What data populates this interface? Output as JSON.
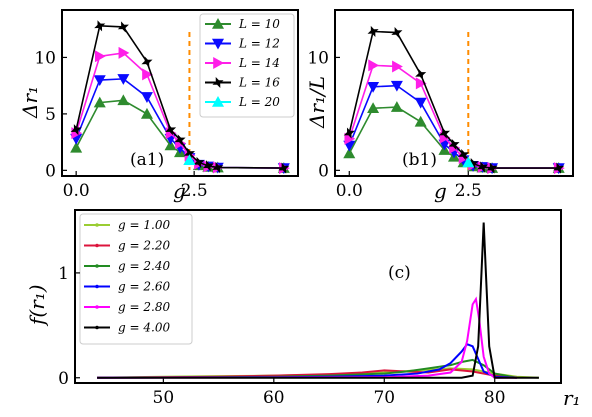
{
  "chart_data": [
    {
      "type": "line",
      "panel_label": "(a1)",
      "xlabel": "g",
      "ylabel": "Δr₁",
      "xlim": [
        -0.3,
        4.7
      ],
      "ylim": [
        -0.5,
        14.2
      ],
      "xticks": [
        {
          "v": 0.0,
          "label": "0.0"
        },
        {
          "v": 2.5,
          "label": "2.5"
        }
      ],
      "yticks": [
        {
          "v": 0,
          "label": "0"
        },
        {
          "v": 5,
          "label": "5"
        },
        {
          "v": 10,
          "label": "10"
        }
      ],
      "vline": {
        "x": 2.4,
        "color": "#ff8c00"
      },
      "legend": {
        "placement": "top-right"
      },
      "series": [
        {
          "name": "L = 10",
          "color": "#2e8b2e",
          "marker": "triangle-up",
          "x": [
            0.0,
            0.5,
            1.0,
            1.5,
            2.0,
            2.2,
            2.4,
            2.6,
            2.8,
            3.0,
            4.4
          ],
          "y": [
            2.0,
            6.0,
            6.2,
            5.0,
            2.2,
            1.6,
            0.9,
            0.45,
            0.3,
            0.25,
            0.2
          ]
        },
        {
          "name": "L = 12",
          "color": "#0a0aff",
          "marker": "triangle-down",
          "x": [
            0.0,
            0.5,
            1.0,
            1.5,
            2.0,
            2.2,
            2.4,
            2.6,
            2.8,
            3.0,
            4.4
          ],
          "y": [
            2.8,
            8.0,
            8.1,
            6.5,
            2.8,
            2.0,
            1.1,
            0.5,
            0.35,
            0.25,
            0.2
          ]
        },
        {
          "name": "L = 14",
          "color": "#ff1ee8",
          "marker": "triangle-right",
          "x": [
            0.0,
            0.5,
            1.0,
            1.5,
            2.0,
            2.2,
            2.4,
            2.6,
            2.8,
            3.0,
            4.4
          ],
          "y": [
            3.3,
            10.1,
            10.4,
            8.5,
            3.3,
            2.4,
            1.3,
            0.6,
            0.35,
            0.25,
            0.2
          ]
        },
        {
          "name": "L = 16",
          "color": "#000000",
          "marker": "star",
          "x": [
            0.0,
            0.5,
            1.0,
            1.5,
            2.0,
            2.2,
            2.4,
            2.6,
            2.8,
            3.0,
            4.4
          ],
          "y": [
            3.6,
            12.8,
            12.7,
            9.6,
            3.6,
            2.7,
            1.5,
            0.7,
            0.4,
            0.25,
            0.2
          ]
        },
        {
          "name": "L = 20",
          "color": "#00ffff",
          "marker": "triangle-up",
          "x": [
            2.4
          ],
          "y": [
            0.9
          ]
        }
      ]
    },
    {
      "type": "line",
      "panel_label": "(b1)",
      "xlabel": "g",
      "ylabel": "Δr₁/L",
      "xlim": [
        -0.3,
        4.7
      ],
      "ylim": [
        -0.5,
        14.2
      ],
      "xticks": [
        {
          "v": 0.0,
          "label": "0.0"
        },
        {
          "v": 2.5,
          "label": "2.5"
        }
      ],
      "yticks": [
        {
          "v": 0,
          "label": "0"
        },
        {
          "v": 10,
          "label": "10"
        }
      ],
      "vline": {
        "x": 2.5,
        "color": "#ff8c00"
      },
      "series": [
        {
          "name": "L = 10",
          "color": "#2e8b2e",
          "marker": "triangle-up",
          "x": [
            0.0,
            0.5,
            1.0,
            1.5,
            2.0,
            2.2,
            2.4,
            2.6,
            2.8,
            3.0,
            4.4
          ],
          "y": [
            1.5,
            5.5,
            5.6,
            4.3,
            1.8,
            1.2,
            0.7,
            0.35,
            0.25,
            0.2,
            0.2
          ]
        },
        {
          "name": "L = 12",
          "color": "#0a0aff",
          "marker": "triangle-down",
          "x": [
            0.0,
            0.5,
            1.0,
            1.5,
            2.0,
            2.2,
            2.4,
            2.6,
            2.8,
            3.0,
            4.4
          ],
          "y": [
            2.2,
            7.4,
            7.5,
            6.0,
            2.3,
            1.6,
            0.9,
            0.4,
            0.3,
            0.2,
            0.2
          ]
        },
        {
          "name": "L = 14",
          "color": "#ff1ee8",
          "marker": "triangle-right",
          "x": [
            0.0,
            0.5,
            1.0,
            1.5,
            2.0,
            2.2,
            2.4,
            2.6,
            2.8,
            3.0,
            4.4
          ],
          "y": [
            2.8,
            9.3,
            9.2,
            7.7,
            2.9,
            2.0,
            1.1,
            0.5,
            0.3,
            0.2,
            0.2
          ]
        },
        {
          "name": "L = 16",
          "color": "#000000",
          "marker": "star",
          "x": [
            0.0,
            0.5,
            1.0,
            1.5,
            2.0,
            2.2,
            2.4,
            2.6,
            2.8,
            3.0,
            4.4
          ],
          "y": [
            3.3,
            12.3,
            12.2,
            8.5,
            3.3,
            2.3,
            1.4,
            0.6,
            0.3,
            0.2,
            0.2
          ]
        },
        {
          "name": "L = 20",
          "color": "#00ffff",
          "marker": "triangle-up",
          "x": [
            2.5
          ],
          "y": [
            0.7
          ]
        }
      ]
    },
    {
      "type": "line",
      "panel_label": "(c)",
      "xlabel": "r₁",
      "ylabel": "f(r₁)",
      "xlim": [
        42,
        86
      ],
      "ylim": [
        -0.05,
        1.6
      ],
      "xticks": [
        {
          "v": 50,
          "label": "50"
        },
        {
          "v": 60,
          "label": "60"
        },
        {
          "v": 70,
          "label": "70"
        },
        {
          "v": 80,
          "label": "80"
        }
      ],
      "yticks": [
        {
          "v": 0,
          "label": "0"
        },
        {
          "v": 1,
          "label": "1"
        }
      ],
      "legend": {
        "placement": "top-left"
      },
      "series": [
        {
          "name": "g = 1.00",
          "color": "#9acd32",
          "x": [
            44,
            50,
            55,
            60,
            65,
            70,
            73,
            76,
            78,
            80,
            82,
            84
          ],
          "y": [
            0.0,
            0.01,
            0.015,
            0.02,
            0.03,
            0.05,
            0.07,
            0.09,
            0.08,
            0.04,
            0.01,
            0.0
          ]
        },
        {
          "name": "g = 2.20",
          "color": "#dc143c",
          "x": [
            44,
            50,
            55,
            60,
            65,
            68,
            70,
            72,
            74,
            76,
            78,
            80,
            82
          ],
          "y": [
            0.0,
            0.005,
            0.01,
            0.02,
            0.035,
            0.05,
            0.07,
            0.06,
            0.05,
            0.08,
            0.06,
            0.02,
            0.0
          ]
        },
        {
          "name": "g = 2.40",
          "color": "#228b22",
          "x": [
            44,
            55,
            60,
            65,
            70,
            72,
            74,
            76,
            77,
            78,
            79,
            80,
            82
          ],
          "y": [
            0.0,
            0.005,
            0.01,
            0.02,
            0.04,
            0.06,
            0.09,
            0.12,
            0.15,
            0.17,
            0.12,
            0.04,
            0.0
          ]
        },
        {
          "name": "g = 2.60",
          "color": "#0000ff",
          "x": [
            44,
            60,
            65,
            70,
            73,
            75,
            76,
            77,
            77.5,
            78,
            78.5,
            79,
            80,
            82
          ],
          "y": [
            0.0,
            0.005,
            0.01,
            0.02,
            0.04,
            0.08,
            0.14,
            0.25,
            0.32,
            0.3,
            0.18,
            0.06,
            0.01,
            0.0
          ]
        },
        {
          "name": "g = 2.80",
          "color": "#ff00ff",
          "x": [
            44,
            70,
            74,
            76,
            77,
            77.5,
            78,
            78.3,
            78.6,
            79,
            79.5,
            80,
            82
          ],
          "y": [
            0.0,
            0.005,
            0.02,
            0.05,
            0.15,
            0.35,
            0.7,
            0.75,
            0.55,
            0.2,
            0.04,
            0.0,
            0.0
          ]
        },
        {
          "name": "g = 4.00",
          "color": "#000000",
          "x": [
            44,
            77,
            78,
            78.5,
            78.8,
            79,
            79.2,
            79.5,
            80,
            84
          ],
          "y": [
            0.0,
            0.0,
            0.02,
            0.3,
            1.0,
            1.48,
            1.0,
            0.3,
            0.0,
            0.0
          ]
        }
      ]
    }
  ]
}
